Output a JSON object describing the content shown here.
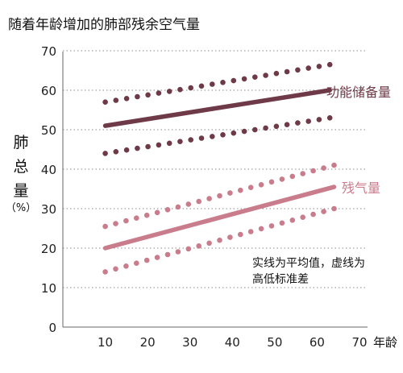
{
  "chart_data": {
    "type": "line",
    "title": "随着年龄增加的肺部残余空气量",
    "ylabel_chars": [
      "肺",
      "总",
      "量"
    ],
    "yunit": "（%）",
    "xlabel": "年龄",
    "xlim": [
      0,
      70
    ],
    "ylim": [
      0,
      70
    ],
    "xticks": [
      10,
      20,
      30,
      40,
      50,
      60,
      70
    ],
    "yticks": [
      0,
      10,
      20,
      30,
      40,
      50,
      60,
      70
    ],
    "grid": "horizontal-dotted",
    "series": [
      {
        "name": "功能储备量",
        "color": "#6e3a48",
        "mean": {
          "x": [
            10,
            63
          ],
          "y": [
            51,
            60
          ]
        },
        "upper": {
          "x": [
            10,
            63
          ],
          "y": [
            57,
            66.5
          ]
        },
        "lower": {
          "x": [
            10,
            63
          ],
          "y": [
            44,
            53
          ]
        }
      },
      {
        "name": "残气量",
        "color": "#c97d8c",
        "mean": {
          "x": [
            10,
            64
          ],
          "y": [
            20,
            35.5
          ]
        },
        "upper": {
          "x": [
            10,
            64
          ],
          "y": [
            25.5,
            41
          ]
        },
        "lower": {
          "x": [
            10,
            64
          ],
          "y": [
            14,
            30
          ]
        }
      }
    ],
    "note_lines": [
      "实线为平均值，虚线为",
      "高低标准差"
    ]
  }
}
